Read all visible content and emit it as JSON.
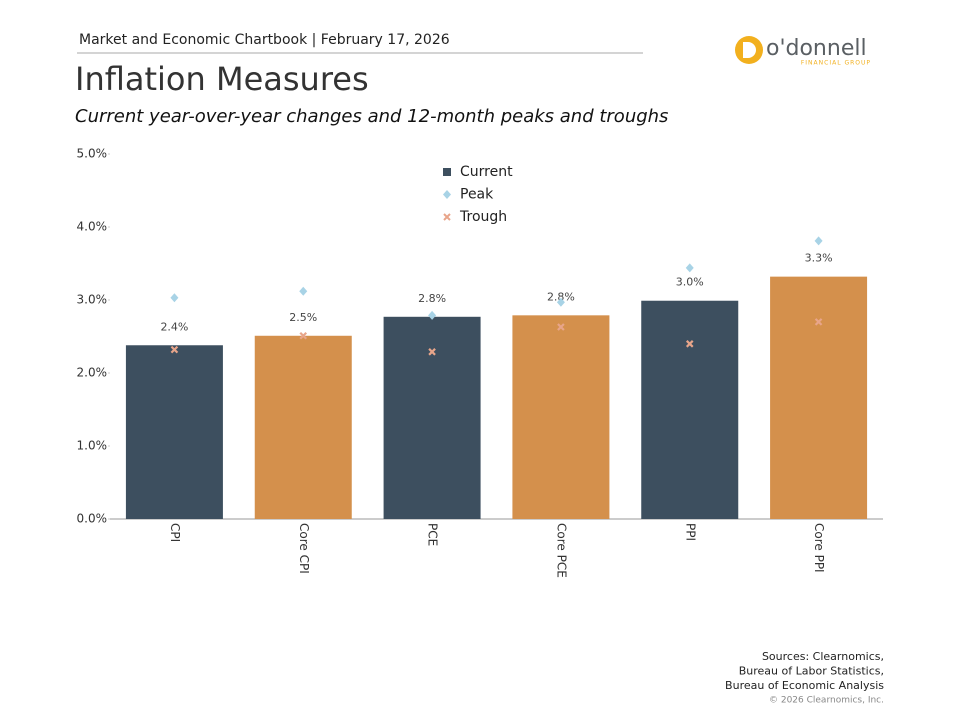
{
  "header": {
    "breadcrumb": "Market and Economic Chartbook | February 17, 2026",
    "logo_name": "o'donnell",
    "logo_tagline": "FINANCIAL GROUP"
  },
  "chart_data": {
    "type": "bar",
    "title": "Inflation Measures",
    "subtitle": "Current year-over-year changes and 12-month peaks and troughs",
    "categories": [
      "CPI",
      "Core CPI",
      "PCE",
      "Core PCE",
      "PPI",
      "Core PPI"
    ],
    "series": [
      {
        "name": "Current",
        "marker": "bar",
        "color": "#3d4f5f",
        "colors": [
          "#3d4f5f",
          "#d4904c",
          "#3d4f5f",
          "#d4904c",
          "#3d4f5f",
          "#d4904c"
        ],
        "values": [
          2.38,
          2.51,
          2.77,
          2.79,
          2.99,
          3.32
        ],
        "value_labels": [
          "2.4%",
          "2.5%",
          "2.8%",
          "2.8%",
          "3.0%",
          "3.3%"
        ]
      },
      {
        "name": "Peak",
        "marker": "diamond",
        "color": "#a8d3e6",
        "values": [
          3.03,
          3.12,
          2.79,
          2.97,
          3.44,
          3.81
        ]
      },
      {
        "name": "Trough",
        "marker": "x",
        "color": "#e8a58a",
        "values": [
          2.32,
          2.51,
          2.29,
          2.63,
          2.4,
          2.7
        ]
      }
    ],
    "ylim": [
      0,
      5
    ],
    "yticks": [
      {
        "value": 0,
        "label": "0.0%"
      },
      {
        "value": 1,
        "label": "1.0%"
      },
      {
        "value": 2,
        "label": "2.0%"
      },
      {
        "value": 3,
        "label": "3.0%"
      },
      {
        "value": 4,
        "label": "4.0%"
      },
      {
        "value": 5,
        "label": "5.0%"
      }
    ],
    "grid": false,
    "legend": "top-center"
  },
  "footer": {
    "sources": [
      "Sources: Clearnomics,",
      "Bureau of Labor Statistics,",
      "Bureau of Economic Analysis"
    ],
    "copyright": "© 2026 Clearnomics, Inc."
  }
}
